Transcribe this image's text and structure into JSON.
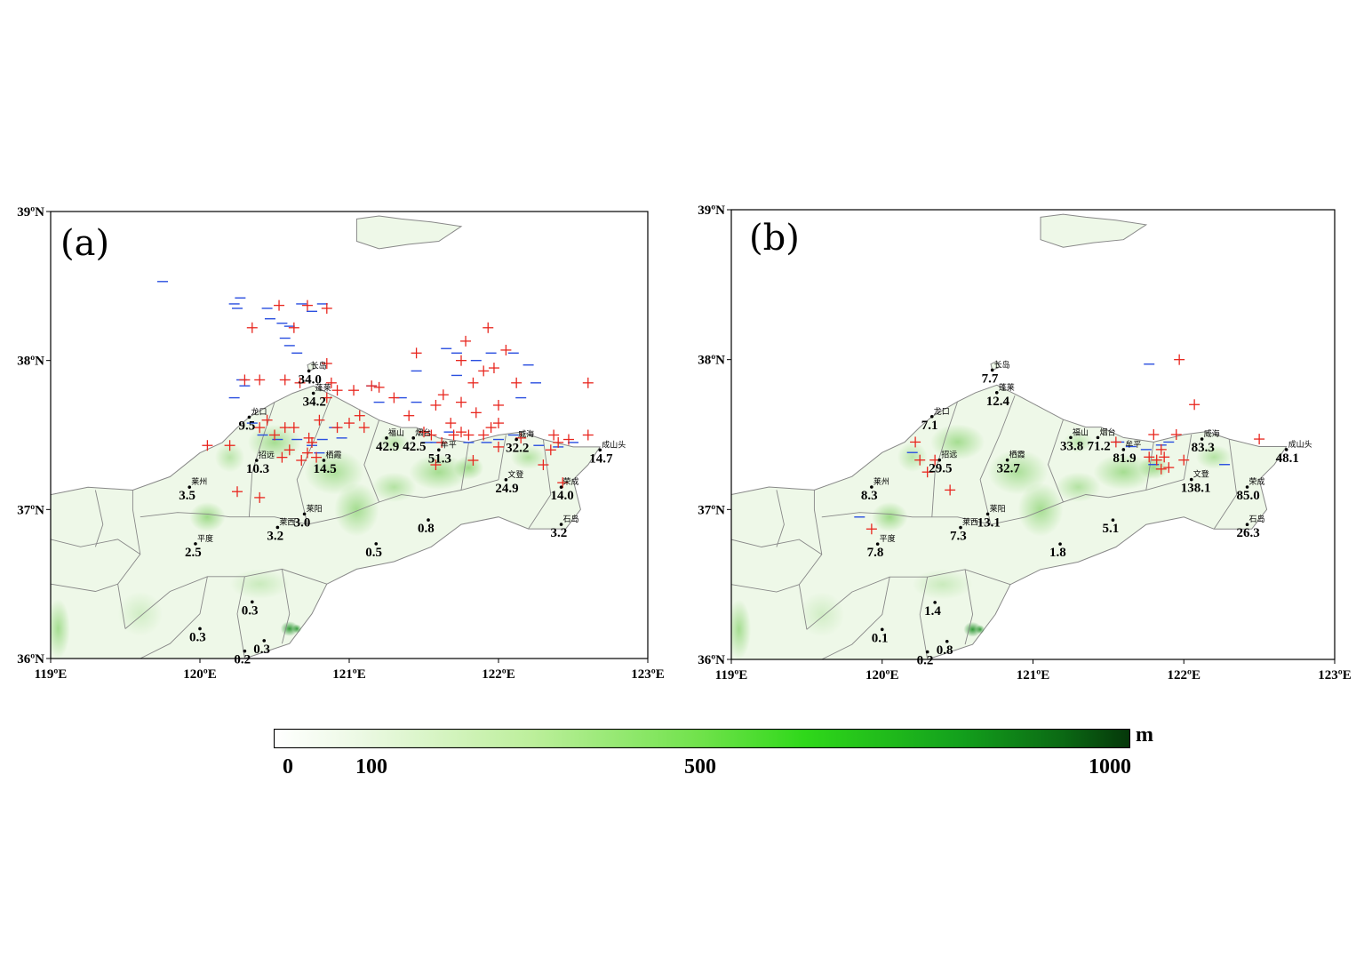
{
  "colors": {
    "land": "#eef8e8",
    "terrain_green": "#5cc23a",
    "terrain_dark": "#138a1c",
    "border": "#888888",
    "positive_marker": "#e8261e",
    "negative_marker": "#2a4fe0"
  },
  "axes": {
    "lon_range": [
      119,
      123
    ],
    "lat_range": [
      36,
      39
    ],
    "x_ticks": [
      "119ºE",
      "120ºE",
      "121ºE",
      "122ºE",
      "123ºE"
    ],
    "y_ticks": [
      "36ºN",
      "37ºN",
      "38ºN",
      "39ºN"
    ]
  },
  "colorbar": {
    "unit": "m",
    "ticks": [
      {
        "label": "0",
        "value": 0
      },
      {
        "label": "100",
        "value": 100
      },
      {
        "label": "500",
        "value": 500
      },
      {
        "label": "1000",
        "value": 1000
      }
    ]
  },
  "panels": [
    {
      "label": "(a)",
      "stations": [
        {
          "name": "长岛",
          "value": "34.0",
          "lon": 120.73,
          "lat": 37.93
        },
        {
          "name": "蓬莱",
          "value": "34.2",
          "lon": 120.76,
          "lat": 37.78
        },
        {
          "name": "龙口",
          "value": "9.5",
          "lon": 120.33,
          "lat": 37.62
        },
        {
          "name": "招远",
          "value": "10.3",
          "lon": 120.38,
          "lat": 37.33
        },
        {
          "name": "栖霞",
          "value": "14.5",
          "lon": 120.83,
          "lat": 37.33
        },
        {
          "name": "福山",
          "value": "42.9",
          "lon": 121.25,
          "lat": 37.48
        },
        {
          "name": "烟台",
          "value": "42.5",
          "lon": 121.43,
          "lat": 37.48
        },
        {
          "name": "牟平",
          "value": "51.3",
          "lon": 121.6,
          "lat": 37.4
        },
        {
          "name": "威海",
          "value": "32.2",
          "lon": 122.12,
          "lat": 37.47
        },
        {
          "name": "成山头",
          "value": "14.7",
          "lon": 122.68,
          "lat": 37.4
        },
        {
          "name": "文登",
          "value": "24.9",
          "lon": 122.05,
          "lat": 37.2
        },
        {
          "name": "荣成",
          "value": "14.0",
          "lon": 122.42,
          "lat": 37.15
        },
        {
          "name": "石岛",
          "value": "3.2",
          "lon": 122.42,
          "lat": 36.9
        },
        {
          "name": "莱州",
          "value": "3.5",
          "lon": 119.93,
          "lat": 37.15
        },
        {
          "name": "莱西",
          "value": "3.2",
          "lon": 120.52,
          "lat": 36.88
        },
        {
          "name": "莱阳",
          "value": "3.0",
          "lon": 120.7,
          "lat": 36.97
        },
        {
          "name": "平度",
          "value": "2.5",
          "lon": 119.97,
          "lat": 36.77
        },
        {
          "name": "",
          "value": "0.8",
          "lon": 121.53,
          "lat": 36.93
        },
        {
          "name": "",
          "value": "0.5",
          "lon": 121.18,
          "lat": 36.77
        },
        {
          "name": "",
          "value": "0.3",
          "lon": 120.35,
          "lat": 36.38
        },
        {
          "name": "",
          "value": "0.3",
          "lon": 120.0,
          "lat": 36.2
        },
        {
          "name": "",
          "value": "0.3",
          "lon": 120.43,
          "lat": 36.12
        },
        {
          "name": "",
          "value": "0.2",
          "lon": 120.3,
          "lat": 36.05
        }
      ],
      "positive_markers": [
        [
          120.35,
          38.22
        ],
        [
          120.53,
          38.37
        ],
        [
          120.63,
          38.22
        ],
        [
          120.72,
          38.37
        ],
        [
          120.85,
          38.35
        ],
        [
          120.3,
          37.87
        ],
        [
          120.4,
          37.87
        ],
        [
          120.57,
          37.87
        ],
        [
          120.67,
          37.85
        ],
        [
          120.85,
          37.98
        ],
        [
          120.88,
          37.85
        ],
        [
          121.03,
          37.8
        ],
        [
          121.15,
          37.83
        ],
        [
          121.3,
          37.75
        ],
        [
          121.4,
          37.63
        ],
        [
          121.45,
          38.05
        ],
        [
          121.58,
          37.7
        ],
        [
          121.63,
          37.77
        ],
        [
          121.68,
          37.58
        ],
        [
          121.75,
          37.72
        ],
        [
          121.75,
          38.0
        ],
        [
          121.78,
          38.13
        ],
        [
          121.83,
          37.85
        ],
        [
          121.9,
          37.93
        ],
        [
          121.93,
          38.22
        ],
        [
          121.97,
          37.95
        ],
        [
          122.05,
          38.07
        ],
        [
          122.12,
          37.85
        ],
        [
          121.85,
          37.65
        ],
        [
          121.95,
          37.55
        ],
        [
          122.0,
          37.7
        ],
        [
          122.15,
          37.48
        ],
        [
          122.37,
          37.5
        ],
        [
          122.4,
          37.45
        ],
        [
          122.47,
          37.47
        ],
        [
          122.6,
          37.5
        ],
        [
          122.6,
          37.85
        ],
        [
          122.43,
          37.18
        ],
        [
          122.3,
          37.3
        ],
        [
          122.0,
          37.58
        ],
        [
          121.83,
          37.33
        ],
        [
          121.7,
          37.5
        ],
        [
          121.75,
          37.52
        ],
        [
          121.8,
          37.5
        ],
        [
          121.58,
          37.3
        ],
        [
          120.2,
          37.43
        ],
        [
          120.05,
          37.43
        ],
        [
          120.25,
          37.12
        ],
        [
          120.4,
          37.08
        ],
        [
          120.45,
          37.6
        ],
        [
          120.57,
          37.55
        ],
        [
          120.63,
          37.55
        ],
        [
          120.73,
          37.48
        ],
        [
          120.6,
          37.4
        ],
        [
          120.72,
          37.38
        ],
        [
          120.68,
          37.33
        ],
        [
          120.75,
          37.45
        ],
        [
          120.8,
          37.6
        ],
        [
          120.85,
          37.75
        ],
        [
          120.92,
          37.55
        ],
        [
          121.0,
          37.58
        ],
        [
          121.07,
          37.63
        ],
        [
          121.2,
          37.82
        ],
        [
          121.1,
          37.55
        ],
        [
          120.92,
          37.8
        ],
        [
          120.5,
          37.5
        ],
        [
          120.4,
          37.55
        ],
        [
          120.55,
          37.35
        ],
        [
          120.78,
          37.35
        ],
        [
          121.5,
          37.52
        ],
        [
          121.62,
          37.45
        ],
        [
          121.55,
          37.5
        ],
        [
          121.9,
          37.5
        ],
        [
          122.0,
          37.42
        ],
        [
          122.35,
          37.4
        ]
      ],
      "negative_markers": [
        [
          119.75,
          38.53
        ],
        [
          120.27,
          38.42
        ],
        [
          120.23,
          38.38
        ],
        [
          120.25,
          38.35
        ],
        [
          120.45,
          38.35
        ],
        [
          120.47,
          38.28
        ],
        [
          120.55,
          38.25
        ],
        [
          120.6,
          38.23
        ],
        [
          120.57,
          38.15
        ],
        [
          120.6,
          38.1
        ],
        [
          120.65,
          38.05
        ],
        [
          120.75,
          38.33
        ],
        [
          120.68,
          38.38
        ],
        [
          120.82,
          38.38
        ],
        [
          120.28,
          37.87
        ],
        [
          120.3,
          37.83
        ],
        [
          120.23,
          37.75
        ],
        [
          120.35,
          37.58
        ],
        [
          120.42,
          37.5
        ],
        [
          120.52,
          37.47
        ],
        [
          120.65,
          37.47
        ],
        [
          120.75,
          37.43
        ],
        [
          120.82,
          37.47
        ],
        [
          120.9,
          37.55
        ],
        [
          120.95,
          37.48
        ],
        [
          120.8,
          37.38
        ],
        [
          121.15,
          37.83
        ],
        [
          121.2,
          37.72
        ],
        [
          121.35,
          37.75
        ],
        [
          121.45,
          37.72
        ],
        [
          121.45,
          37.93
        ],
        [
          121.52,
          37.45
        ],
        [
          121.65,
          38.08
        ],
        [
          121.72,
          38.05
        ],
        [
          121.72,
          37.9
        ],
        [
          121.85,
          38.0
        ],
        [
          121.95,
          38.05
        ],
        [
          122.1,
          38.05
        ],
        [
          122.2,
          37.97
        ],
        [
          122.25,
          37.85
        ],
        [
          122.15,
          37.75
        ],
        [
          121.8,
          37.45
        ],
        [
          121.92,
          37.45
        ],
        [
          122.0,
          37.47
        ],
        [
          122.1,
          37.5
        ],
        [
          121.67,
          37.52
        ],
        [
          121.58,
          37.45
        ],
        [
          122.27,
          37.43
        ],
        [
          122.4,
          37.42
        ],
        [
          122.5,
          37.45
        ]
      ]
    },
    {
      "label": "(b)",
      "stations": [
        {
          "name": "长岛",
          "value": "7.7",
          "lon": 120.73,
          "lat": 37.93
        },
        {
          "name": "蓬莱",
          "value": "12.4",
          "lon": 120.76,
          "lat": 37.78
        },
        {
          "name": "龙口",
          "value": "7.1",
          "lon": 120.33,
          "lat": 37.62
        },
        {
          "name": "招远",
          "value": "29.5",
          "lon": 120.38,
          "lat": 37.33
        },
        {
          "name": "栖霞",
          "value": "32.7",
          "lon": 120.83,
          "lat": 37.33
        },
        {
          "name": "福山",
          "value": "33.8",
          "lon": 121.25,
          "lat": 37.48
        },
        {
          "name": "烟台",
          "value": "71.2",
          "lon": 121.43,
          "lat": 37.48
        },
        {
          "name": "牟平",
          "value": "81.9",
          "lon": 121.6,
          "lat": 37.4
        },
        {
          "name": "威海",
          "value": "83.3",
          "lon": 122.12,
          "lat": 37.47
        },
        {
          "name": "成山头",
          "value": "48.1",
          "lon": 122.68,
          "lat": 37.4
        },
        {
          "name": "文登",
          "value": "138.1",
          "lon": 122.05,
          "lat": 37.2
        },
        {
          "name": "荣成",
          "value": "85.0",
          "lon": 122.42,
          "lat": 37.15
        },
        {
          "name": "石岛",
          "value": "26.3",
          "lon": 122.42,
          "lat": 36.9
        },
        {
          "name": "莱州",
          "value": "8.3",
          "lon": 119.93,
          "lat": 37.15
        },
        {
          "name": "莱西",
          "value": "7.3",
          "lon": 120.52,
          "lat": 36.88
        },
        {
          "name": "莱阳",
          "value": "13.1",
          "lon": 120.7,
          "lat": 36.97
        },
        {
          "name": "平度",
          "value": "7.8",
          "lon": 119.97,
          "lat": 36.77
        },
        {
          "name": "",
          "value": "5.1",
          "lon": 121.53,
          "lat": 36.93
        },
        {
          "name": "",
          "value": "1.8",
          "lon": 121.18,
          "lat": 36.77
        },
        {
          "name": "",
          "value": "1.4",
          "lon": 120.35,
          "lat": 36.38
        },
        {
          "name": "",
          "value": "0.1",
          "lon": 120.0,
          "lat": 36.2
        },
        {
          "name": "",
          "value": "0.8",
          "lon": 120.43,
          "lat": 36.12
        },
        {
          "name": "",
          "value": "0.2",
          "lon": 120.3,
          "lat": 36.05
        }
      ],
      "positive_markers": [
        [
          121.97,
          38.0
        ],
        [
          122.07,
          37.7
        ],
        [
          121.95,
          37.5
        ],
        [
          121.8,
          37.5
        ],
        [
          121.85,
          37.4
        ],
        [
          121.82,
          37.33
        ],
        [
          121.77,
          37.35
        ],
        [
          121.87,
          37.35
        ],
        [
          121.9,
          37.28
        ],
        [
          121.85,
          37.27
        ],
        [
          122.0,
          37.33
        ],
        [
          121.55,
          37.45
        ],
        [
          122.5,
          37.47
        ],
        [
          120.22,
          37.45
        ],
        [
          120.25,
          37.33
        ],
        [
          120.3,
          37.25
        ],
        [
          120.45,
          37.13
        ],
        [
          119.93,
          36.87
        ],
        [
          120.35,
          37.33
        ]
      ],
      "negative_markers": [
        [
          119.85,
          36.95
        ],
        [
          120.2,
          37.38
        ],
        [
          121.57,
          37.45
        ],
        [
          121.65,
          37.42
        ],
        [
          121.75,
          37.4
        ],
        [
          121.8,
          37.3
        ],
        [
          121.77,
          37.97
        ],
        [
          121.9,
          37.45
        ],
        [
          122.27,
          37.3
        ],
        [
          121.85,
          37.43
        ]
      ]
    }
  ]
}
